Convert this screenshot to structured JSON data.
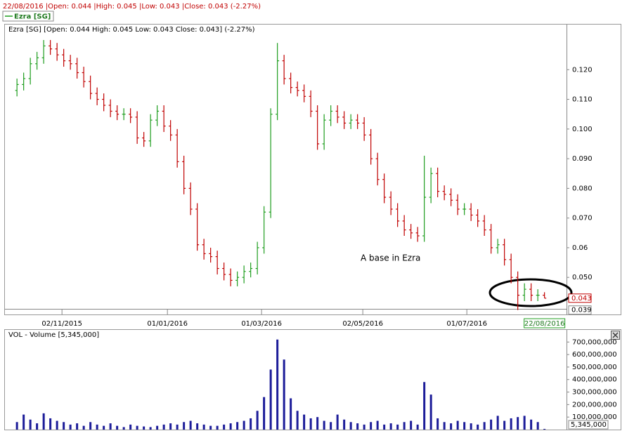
{
  "header": "22/08/2016 |Open: 0.044 |High: 0.045 |Low: 0.043 |Close: 0.043 (-2.27%)",
  "legend": "Ezra [SG]",
  "chart_data": [
    {
      "type": "ohlc",
      "title": "Ezra [SG] [Open: 0.044  High: 0.045  Low: 0.043  Close: 0.043] (-2.27%)",
      "annotation": "A base in Ezra",
      "open": [
        0.113,
        0.115,
        0.117,
        0.122,
        0.124,
        0.128,
        0.127,
        0.125,
        0.123,
        0.122,
        0.119,
        0.116,
        0.112,
        0.11,
        0.108,
        0.106,
        0.105,
        0.105,
        0.104,
        0.097,
        0.096,
        0.103,
        0.106,
        0.101,
        0.098,
        0.089,
        0.08,
        0.073,
        0.061,
        0.058,
        0.057,
        0.053,
        0.051,
        0.049,
        0.05,
        0.052,
        0.053,
        0.06,
        0.072,
        0.105,
        0.123,
        0.117,
        0.114,
        0.113,
        0.111,
        0.106,
        0.095,
        0.103,
        0.106,
        0.104,
        0.102,
        0.103,
        0.102,
        0.098,
        0.09,
        0.083,
        0.077,
        0.073,
        0.069,
        0.066,
        0.065,
        0.064,
        0.077,
        0.085,
        0.079,
        0.078,
        0.076,
        0.073,
        0.073,
        0.071,
        0.069,
        0.066,
        0.06,
        0.061,
        0.056,
        0.05,
        0.044,
        0.046,
        0.044,
        0.044
      ],
      "high": [
        0.117,
        0.119,
        0.124,
        0.126,
        0.13,
        0.13,
        0.129,
        0.127,
        0.125,
        0.124,
        0.121,
        0.118,
        0.114,
        0.112,
        0.11,
        0.108,
        0.107,
        0.107,
        0.106,
        0.099,
        0.105,
        0.108,
        0.108,
        0.103,
        0.1,
        0.091,
        0.082,
        0.075,
        0.063,
        0.06,
        0.059,
        0.055,
        0.053,
        0.052,
        0.054,
        0.055,
        0.062,
        0.074,
        0.107,
        0.129,
        0.125,
        0.119,
        0.116,
        0.115,
        0.113,
        0.108,
        0.105,
        0.108,
        0.108,
        0.106,
        0.105,
        0.105,
        0.104,
        0.1,
        0.092,
        0.085,
        0.079,
        0.075,
        0.071,
        0.068,
        0.067,
        0.091,
        0.087,
        0.087,
        0.081,
        0.08,
        0.078,
        0.075,
        0.075,
        0.073,
        0.071,
        0.068,
        0.063,
        0.063,
        0.058,
        0.052,
        0.048,
        0.048,
        0.046,
        0.045
      ],
      "low": [
        0.111,
        0.113,
        0.115,
        0.12,
        0.122,
        0.125,
        0.123,
        0.121,
        0.12,
        0.117,
        0.114,
        0.11,
        0.108,
        0.106,
        0.104,
        0.103,
        0.103,
        0.102,
        0.095,
        0.094,
        0.094,
        0.101,
        0.099,
        0.096,
        0.087,
        0.078,
        0.071,
        0.059,
        0.056,
        0.055,
        0.051,
        0.049,
        0.047,
        0.047,
        0.048,
        0.05,
        0.051,
        0.058,
        0.07,
        0.103,
        0.115,
        0.112,
        0.111,
        0.109,
        0.104,
        0.093,
        0.093,
        0.101,
        0.102,
        0.1,
        0.1,
        0.1,
        0.096,
        0.088,
        0.081,
        0.075,
        0.071,
        0.067,
        0.064,
        0.063,
        0.062,
        0.062,
        0.075,
        0.077,
        0.076,
        0.074,
        0.071,
        0.071,
        0.069,
        0.067,
        0.064,
        0.058,
        0.058,
        0.054,
        0.048,
        0.039,
        0.042,
        0.042,
        0.042,
        0.043
      ],
      "close": [
        0.115,
        0.117,
        0.122,
        0.124,
        0.128,
        0.127,
        0.125,
        0.123,
        0.122,
        0.119,
        0.116,
        0.112,
        0.11,
        0.108,
        0.106,
        0.105,
        0.105,
        0.104,
        0.097,
        0.096,
        0.103,
        0.106,
        0.101,
        0.098,
        0.089,
        0.08,
        0.073,
        0.061,
        0.058,
        0.057,
        0.053,
        0.051,
        0.049,
        0.05,
        0.052,
        0.053,
        0.06,
        0.072,
        0.105,
        0.123,
        0.117,
        0.114,
        0.113,
        0.111,
        0.106,
        0.095,
        0.103,
        0.106,
        0.104,
        0.102,
        0.103,
        0.102,
        0.098,
        0.09,
        0.083,
        0.077,
        0.073,
        0.069,
        0.066,
        0.065,
        0.064,
        0.077,
        0.085,
        0.079,
        0.078,
        0.076,
        0.073,
        0.073,
        0.071,
        0.069,
        0.066,
        0.06,
        0.061,
        0.056,
        0.05,
        0.044,
        0.046,
        0.044,
        0.044,
        0.043
      ],
      "up_color": "#1f9e1f",
      "down_color": "#c00000",
      "xlim": [
        -1.7,
        82.3
      ],
      "xticks": [
        {
          "value": 6.74,
          "label": "02/11/2015"
        },
        {
          "value": 22.53,
          "label": "01/01/2016"
        },
        {
          "value": 36.63,
          "label": "01/03/2016"
        },
        {
          "value": 51.79,
          "label": "02/05/2016"
        },
        {
          "value": 67.37,
          "label": "01/07/2016"
        }
      ],
      "last_date": "22/08/2016",
      "ylim": [
        0.0394,
        0.1352
      ],
      "yticks": [
        {
          "value": 0.05,
          "label": "0.050"
        },
        0.06,
        {
          "value": 0.07,
          "label": "0.070"
        },
        {
          "value": 0.08,
          "label": "0.080"
        },
        {
          "value": 0.09,
          "label": "0.090"
        },
        {
          "value": 0.1,
          "label": "0.100"
        },
        {
          "value": 0.11,
          "label": "0.110"
        },
        {
          "value": 0.12,
          "label": "0.120"
        }
      ],
      "last_price": 0.043,
      "range_low": 0.039
    },
    {
      "type": "bar",
      "title": "VOL - Volume [5,345,000]",
      "values": [
        60000000,
        120000000,
        80000000,
        50000000,
        130000000,
        90000000,
        70000000,
        60000000,
        40000000,
        50000000,
        30000000,
        60000000,
        40000000,
        30000000,
        50000000,
        30000000,
        20000000,
        40000000,
        30000000,
        25000000,
        20000000,
        30000000,
        40000000,
        50000000,
        40000000,
        60000000,
        70000000,
        50000000,
        40000000,
        30000000,
        30000000,
        40000000,
        50000000,
        60000000,
        70000000,
        90000000,
        150000000,
        260000000,
        480000000,
        720000000,
        560000000,
        250000000,
        150000000,
        120000000,
        90000000,
        100000000,
        70000000,
        60000000,
        120000000,
        80000000,
        60000000,
        50000000,
        40000000,
        60000000,
        70000000,
        40000000,
        50000000,
        40000000,
        60000000,
        70000000,
        40000000,
        380000000,
        280000000,
        90000000,
        60000000,
        50000000,
        70000000,
        60000000,
        50000000,
        40000000,
        60000000,
        80000000,
        110000000,
        70000000,
        90000000,
        100000000,
        110000000,
        80000000,
        60000000,
        5345000
      ],
      "color": "#1c1c99",
      "xlim": [
        -1.7,
        82.3
      ],
      "ylim": [
        0,
        797000000
      ],
      "yticks": [
        {
          "value": 100000000,
          "label": "100,000,000"
        },
        {
          "value": 200000000,
          "label": "200,000,000"
        },
        {
          "value": 300000000,
          "label": "300,000,000"
        },
        {
          "value": 400000000,
          "label": "400,000,000"
        },
        {
          "value": 500000000,
          "label": "500,000,000"
        },
        {
          "value": 600000000,
          "label": "600,000,000"
        },
        {
          "value": 700000000,
          "label": "700,000,000"
        }
      ],
      "last_value_label": "5,345,000"
    }
  ]
}
